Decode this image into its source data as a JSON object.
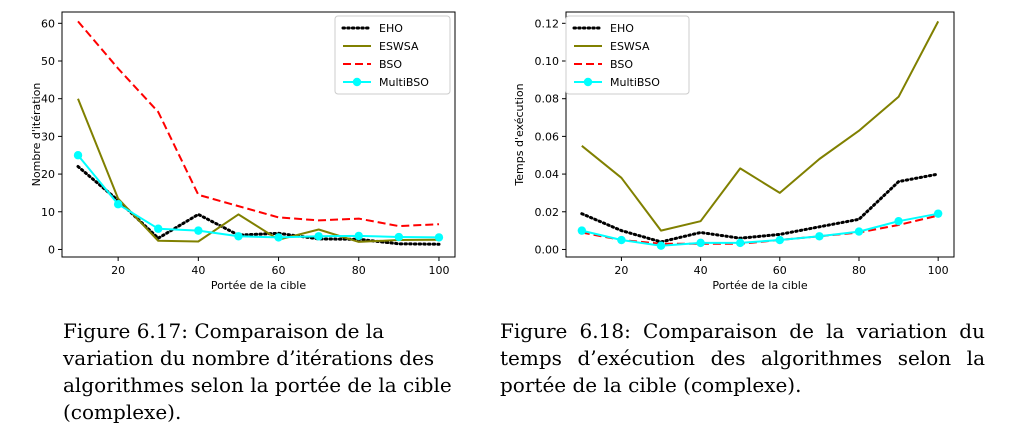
{
  "chart_data": [
    {
      "type": "line",
      "xlabel": "Portée de la cible",
      "ylabel": "Nombre d'itération",
      "xlim": [
        6,
        104
      ],
      "ylim": [
        -2,
        63
      ],
      "xticks": [
        20,
        40,
        60,
        80,
        100
      ],
      "yticks": [
        0,
        10,
        20,
        30,
        40,
        50,
        60
      ],
      "grid": false,
      "legend_position": "top-right",
      "x": [
        10,
        20,
        30,
        40,
        50,
        60,
        70,
        80,
        90,
        100
      ],
      "series": [
        {
          "name": "EHO",
          "color": "#000000",
          "style": "dotted",
          "values": [
            22,
            13,
            3,
            9.3,
            3.8,
            4.3,
            2.8,
            2.7,
            1.5,
            1.4
          ]
        },
        {
          "name": "ESWSA",
          "color": "#808000",
          "style": "solid",
          "values": [
            40,
            13.5,
            2.3,
            2.1,
            9.3,
            2.6,
            5.3,
            2,
            2.5,
            2.6
          ]
        },
        {
          "name": "BSO",
          "color": "#ff0000",
          "style": "dashed",
          "values": [
            60.5,
            48,
            36.5,
            14.5,
            11.5,
            8.5,
            7.7,
            8.2,
            6.2,
            6.7
          ]
        },
        {
          "name": "MultiBSO",
          "color": "#00ffff",
          "style": "solid-marker",
          "values": [
            25,
            12,
            5.5,
            5,
            3.5,
            3.2,
            3.5,
            3.6,
            3.3,
            3.2
          ]
        }
      ]
    },
    {
      "type": "line",
      "xlabel": "Portée de la cible",
      "ylabel": "Temps d'exécution",
      "xlim": [
        6,
        104
      ],
      "ylim": [
        -0.004,
        0.126
      ],
      "xticks": [
        20,
        40,
        60,
        80,
        100
      ],
      "yticks": [
        0,
        0.02,
        0.04,
        0.06,
        0.08,
        0.1,
        0.12
      ],
      "ytick_labels": [
        "0.00",
        "0.02",
        "0.04",
        "0.06",
        "0.08",
        "0.10",
        "0.12"
      ],
      "grid": false,
      "legend_position": "top-left",
      "x": [
        10,
        20,
        30,
        40,
        50,
        60,
        70,
        80,
        90,
        100
      ],
      "series": [
        {
          "name": "EHO",
          "color": "#000000",
          "style": "dotted",
          "values": [
            0.019,
            0.01,
            0.004,
            0.009,
            0.006,
            0.008,
            0.012,
            0.016,
            0.036,
            0.04
          ]
        },
        {
          "name": "ESWSA",
          "color": "#808000",
          "style": "solid",
          "values": [
            0.055,
            0.038,
            0.01,
            0.015,
            0.043,
            0.03,
            0.048,
            0.063,
            0.081,
            0.121
          ]
        },
        {
          "name": "BSO",
          "color": "#ff0000",
          "style": "dashed",
          "values": [
            0.009,
            0.005,
            0.003,
            0.003,
            0.003,
            0.005,
            0.007,
            0.009,
            0.013,
            0.018
          ]
        },
        {
          "name": "MultiBSO",
          "color": "#00ffff",
          "style": "solid-marker",
          "values": [
            0.01,
            0.005,
            0.002,
            0.0035,
            0.0035,
            0.005,
            0.007,
            0.0095,
            0.015,
            0.019
          ]
        }
      ]
    }
  ],
  "captions": [
    "Figure 6.17: Comparaison de la variation du nombre d’itérations des algorithmes selon la portée de la cible (complexe).",
    "Figure 6.18: Comparaison de la variation du temps d’exécution des algorithmes selon la portée de la cible (complexe)."
  ]
}
